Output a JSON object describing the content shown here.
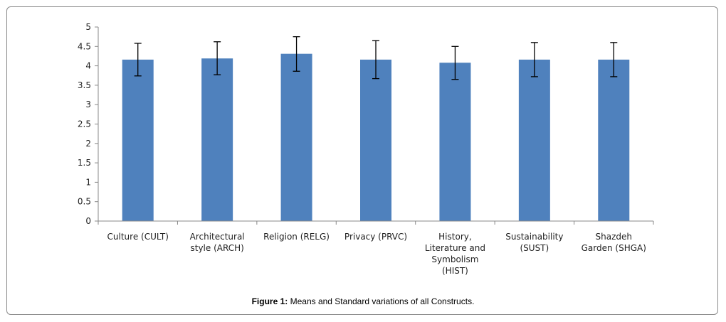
{
  "caption": {
    "label": "Figure 1:",
    "text": "Means and Standard variations of all Constructs."
  },
  "chart_data": {
    "type": "bar",
    "categories": [
      [
        "Culture (CULT)"
      ],
      [
        "Architectural",
        "style (ARCH)"
      ],
      [
        "Religion (RELG)"
      ],
      [
        "Privacy (PRVC)"
      ],
      [
        "History,",
        "Literature and",
        "Symbolism",
        "(HIST)"
      ],
      [
        "Sustainability",
        "(SUST)"
      ],
      [
        "Shazdeh",
        "Garden (SHGA)"
      ]
    ],
    "values": [
      4.16,
      4.19,
      4.31,
      4.16,
      4.08,
      4.16,
      4.16
    ],
    "error": [
      [
        3.74,
        4.58
      ],
      [
        3.77,
        4.62
      ],
      [
        3.86,
        4.75
      ],
      [
        3.67,
        4.65
      ],
      [
        3.65,
        4.5
      ],
      [
        3.72,
        4.6
      ],
      [
        3.72,
        4.6
      ]
    ],
    "ylim": [
      0,
      5
    ],
    "yticks": [
      "0",
      "0.5",
      "1",
      "1.5",
      "2",
      "2.5",
      "3",
      "3.5",
      "4",
      "4.5",
      "5"
    ],
    "bar_color": "#4f81bd",
    "grid": false,
    "legend": "none",
    "title": "",
    "xlabel": "",
    "ylabel": ""
  }
}
